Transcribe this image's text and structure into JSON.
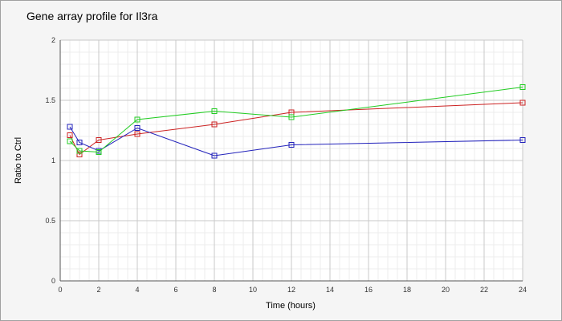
{
  "chart_data": {
    "type": "line",
    "title": "Gene array profile for Il3ra",
    "xlabel": "Time (hours)",
    "ylabel": "Ratio to Ctrl",
    "xlim": [
      0,
      24
    ],
    "ylim": [
      0,
      2
    ],
    "x_ticks": [
      0,
      2,
      4,
      6,
      8,
      10,
      12,
      14,
      16,
      18,
      20,
      22,
      24
    ],
    "y_ticks": [
      0,
      0.5,
      1,
      1.5,
      2
    ],
    "y_tick_labels": [
      "0",
      "0.5",
      "1",
      "1.5",
      "2"
    ],
    "grid": true,
    "marker": "square-open",
    "series": [
      {
        "color": "#cc2222",
        "x": [
          0.5,
          1,
          2,
          4,
          8,
          12,
          24
        ],
        "y": [
          1.21,
          1.05,
          1.17,
          1.22,
          1.3,
          1.4,
          1.48
        ]
      },
      {
        "color": "#2222bb",
        "x": [
          0.5,
          1,
          2,
          4,
          8,
          12,
          24
        ],
        "y": [
          1.28,
          1.15,
          1.08,
          1.27,
          1.04,
          1.13,
          1.17
        ]
      },
      {
        "color": "#22cc22",
        "x": [
          0.5,
          1,
          2,
          4,
          8,
          12,
          24
        ],
        "y": [
          1.16,
          1.08,
          1.07,
          1.34,
          1.41,
          1.36,
          1.61
        ]
      }
    ]
  }
}
